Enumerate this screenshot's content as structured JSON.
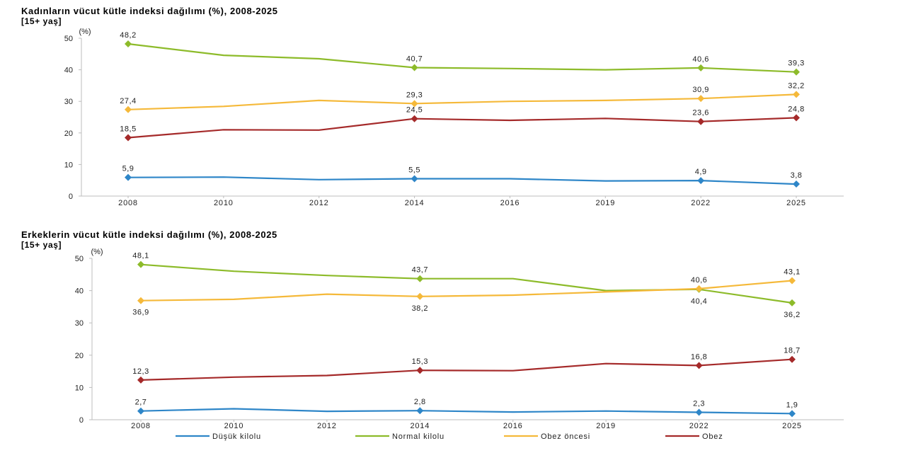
{
  "chart_data": [
    {
      "type": "line",
      "title": "Kadınların vücut kütle indeksi dağılımı (%), 2008-2025",
      "subtitle": "[15+ yaş]",
      "unit_label": "(%)",
      "categories": [
        "2008",
        "2010",
        "2012",
        "2014",
        "2016",
        "2019",
        "2022",
        "2025"
      ],
      "ylim": [
        0,
        50
      ],
      "yticks": [
        0,
        10,
        20,
        30,
        40,
        50
      ],
      "series": [
        {
          "name": "Düşük kilolu",
          "color": "#2E86C8",
          "values": [
            5.9,
            6.0,
            5.2,
            5.5,
            5.5,
            4.8,
            4.9,
            3.8
          ],
          "labels": {
            "0": "5,9",
            "3": "5,5",
            "6": "4,9",
            "7": "3,8"
          }
        },
        {
          "name": "Normal kilolu",
          "color": "#8DBB2A",
          "values": [
            48.2,
            44.6,
            43.5,
            40.7,
            40.4,
            40.0,
            40.6,
            39.3
          ],
          "labels": {
            "0": "48,2",
            "3": "40,7",
            "6": "40,6",
            "7": "39,3"
          }
        },
        {
          "name": "Obez öncesi",
          "color": "#F5B93A",
          "values": [
            27.4,
            28.4,
            30.3,
            29.3,
            30.0,
            30.3,
            30.9,
            32.2
          ],
          "labels": {
            "0": "27,4",
            "3": "29,3",
            "6": "30,9",
            "7": "32,2"
          }
        },
        {
          "name": "Obez",
          "color": "#A52A2A",
          "values": [
            18.5,
            21.0,
            20.9,
            24.5,
            24.0,
            24.6,
            23.6,
            24.8
          ],
          "labels": {
            "0": "18,5",
            "3": "24,5",
            "6": "23,6",
            "7": "24,8"
          }
        }
      ]
    },
    {
      "type": "line",
      "title": "Erkeklerin vücut kütle indeksi dağılımı (%), 2008-2025",
      "subtitle": "[15+ yaş]",
      "unit_label": "(%)",
      "categories": [
        "2008",
        "2010",
        "2012",
        "2014",
        "2016",
        "2019",
        "2022",
        "2025"
      ],
      "ylim": [
        0,
        50
      ],
      "yticks": [
        0,
        10,
        20,
        30,
        40,
        50
      ],
      "series": [
        {
          "name": "Düşük kilolu",
          "color": "#2E86C8",
          "values": [
            2.7,
            3.4,
            2.6,
            2.8,
            2.4,
            2.7,
            2.3,
            1.9
          ],
          "labels": {
            "0": "2,7",
            "3": "2,8",
            "6": "2,3",
            "7": "1,9"
          }
        },
        {
          "name": "Normal kilolu",
          "color": "#8DBB2A",
          "values": [
            48.1,
            46.0,
            44.7,
            43.7,
            43.7,
            40.0,
            40.4,
            36.2
          ],
          "labels": {
            "0": "48,1",
            "3": "43,7",
            "6": "40,4",
            "7": "36,2"
          }
        },
        {
          "name": "Obez öncesi",
          "color": "#F5B93A",
          "values": [
            36.9,
            37.3,
            38.9,
            38.2,
            38.6,
            39.6,
            40.6,
            43.1
          ],
          "labels": {
            "0": "36,9",
            "3": "38,2",
            "6": "40,6",
            "7": "43,1"
          }
        },
        {
          "name": "Obez",
          "color": "#A52A2A",
          "values": [
            12.3,
            13.2,
            13.7,
            15.3,
            15.2,
            17.4,
            16.8,
            18.7
          ],
          "labels": {
            "0": "12,3",
            "3": "15,3",
            "6": "16,8",
            "7": "18,7"
          }
        }
      ]
    }
  ],
  "legend": [
    "Düşük kilolu",
    "Normal kilolu",
    "Obez öncesi",
    "Obez"
  ]
}
